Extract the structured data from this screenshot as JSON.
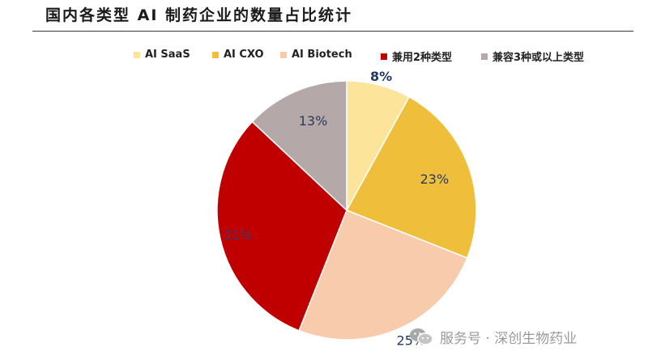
{
  "title": "国内各类型 AI 制药企业的数量占比统计",
  "watermark": {
    "icon": "wechat-icon",
    "text": "服务号 · 深创生物药业"
  },
  "chart_data": {
    "type": "pie",
    "title": "国内各类型 AI 制药企业的数量占比统计",
    "legend_position": "top",
    "start": "12 o'clock, clockwise",
    "series": [
      {
        "name": "AI SaaS",
        "value": 8,
        "label": "8%",
        "color": "#FCE49A",
        "label_color": "#1F3864"
      },
      {
        "name": "AI CXO",
        "value": 23,
        "label": "23%",
        "color": "#EFBF3C",
        "label_color": "#2E3A59"
      },
      {
        "name": "AI Biotech",
        "value": 25,
        "label": "25%",
        "color": "#F8CBAD",
        "label_color": "#1F3864"
      },
      {
        "name": "兼用2种类型",
        "value": 31,
        "label": "31%",
        "color": "#C00000",
        "label_color": "#3A3A6A"
      },
      {
        "name": "兼容3种或以上类型",
        "value": 13,
        "label": "13%",
        "color": "#B4A8A8",
        "label_color": "#2E3A59"
      }
    ]
  }
}
